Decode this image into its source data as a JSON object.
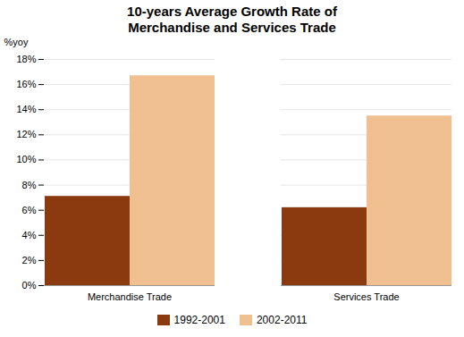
{
  "chart_data": {
    "type": "bar",
    "title": "10-years Average Growth Rate of\nMerchandise and Services Trade",
    "ylabel": "%yoy",
    "categories": [
      "Merchandise Trade",
      "Services Trade"
    ],
    "series": [
      {
        "name": "1992-2001",
        "color": "#8B3A0F",
        "values": [
          0.071,
          0.062
        ]
      },
      {
        "name": "2002-2011",
        "color": "#F0C090",
        "values": [
          0.167,
          0.135
        ]
      }
    ],
    "ylim": [
      0,
      0.18
    ],
    "yticks": [
      {
        "value": 0.0,
        "label": "0%"
      },
      {
        "value": 0.02,
        "label": "2%"
      },
      {
        "value": 0.04,
        "label": "4%"
      },
      {
        "value": 0.06,
        "label": "6%"
      },
      {
        "value": 0.08,
        "label": "8%"
      },
      {
        "value": 0.1,
        "label": "10%"
      },
      {
        "value": 0.12,
        "label": "12%"
      },
      {
        "value": 0.14,
        "label": "14%"
      },
      {
        "value": 0.16,
        "label": "16%"
      },
      {
        "value": 0.18,
        "label": "18%"
      }
    ],
    "grid": true,
    "legend": "bottom"
  }
}
